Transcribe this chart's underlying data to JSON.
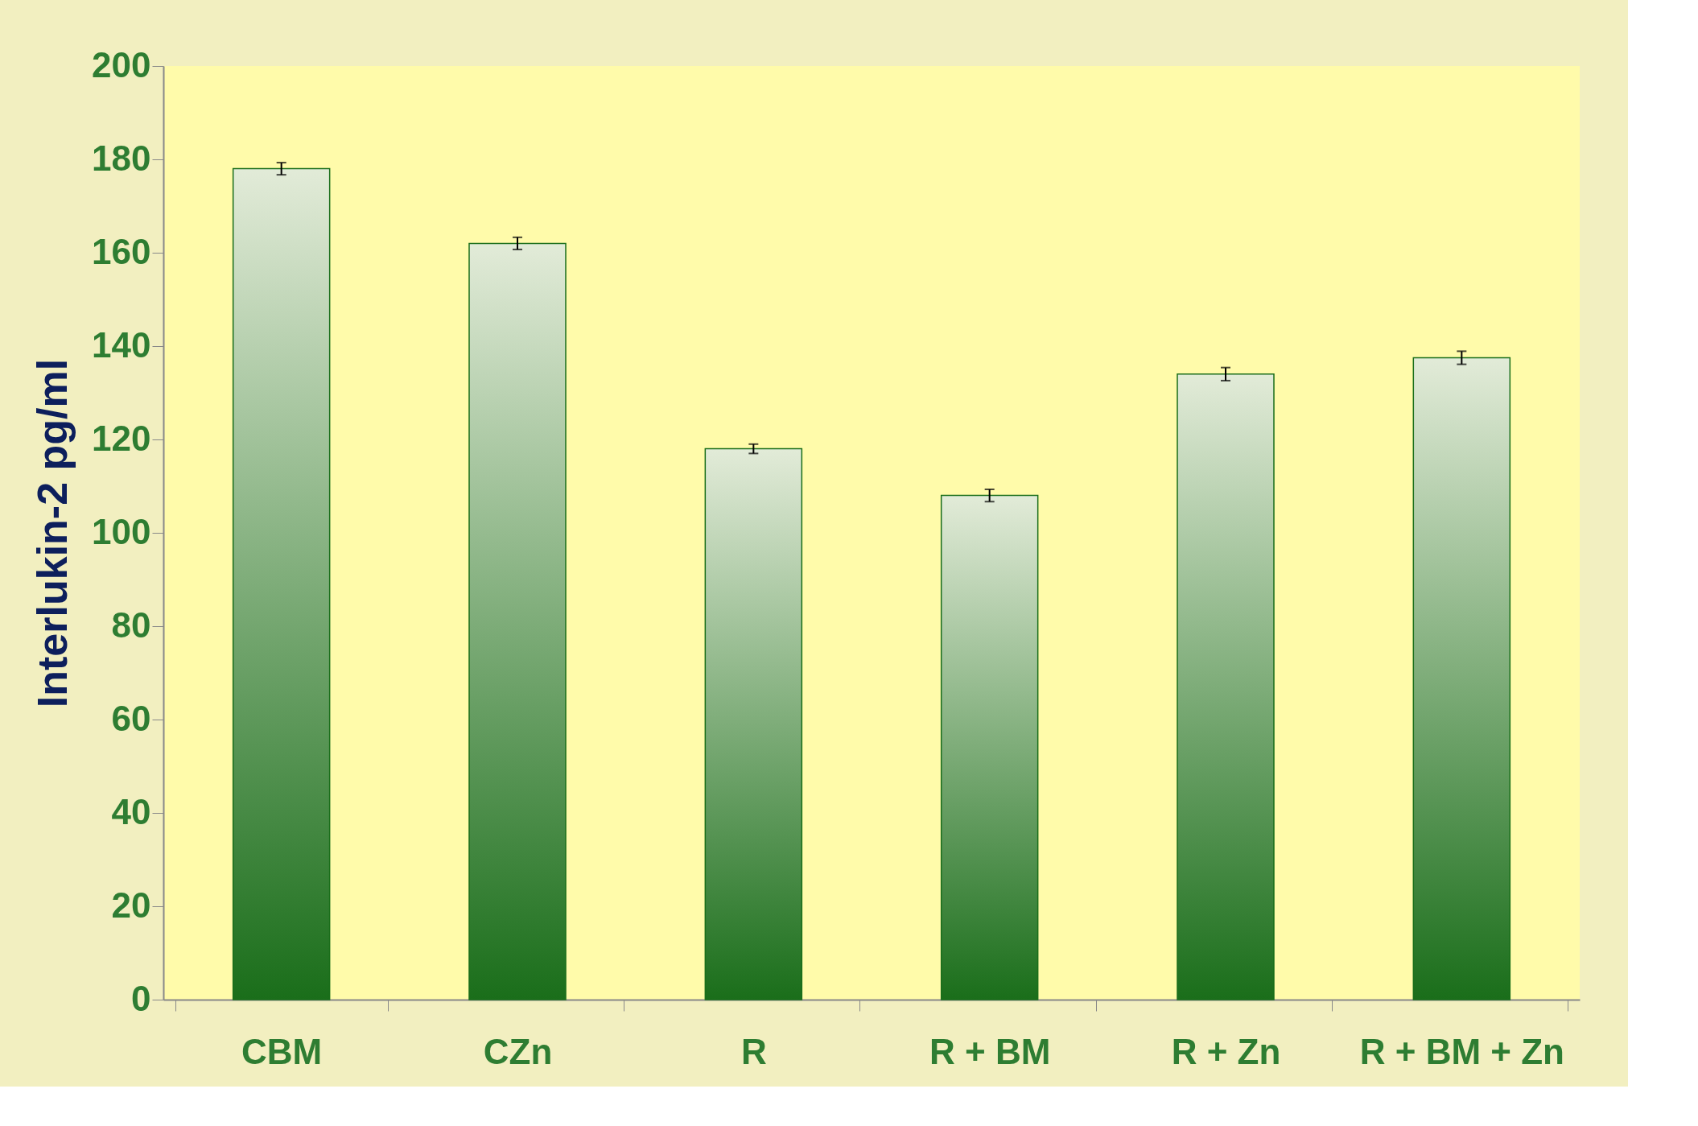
{
  "chart_data": {
    "type": "bar",
    "ylabel": "Interlukin-2 pg/ml",
    "categories": [
      "CBM",
      "CZn",
      "R",
      "R + BM",
      "R + Zn",
      "R + BM + Zn"
    ],
    "values": [
      178,
      162,
      118,
      108,
      134,
      137.5
    ],
    "errors": [
      1.3,
      1.3,
      1.0,
      1.3,
      1.4,
      1.4
    ],
    "color": "#1a6e1a",
    "ylim": [
      0,
      200
    ],
    "yticks": [
      0,
      20,
      40,
      60,
      80,
      100,
      120,
      140,
      160,
      180,
      200
    ],
    "grid": false
  }
}
